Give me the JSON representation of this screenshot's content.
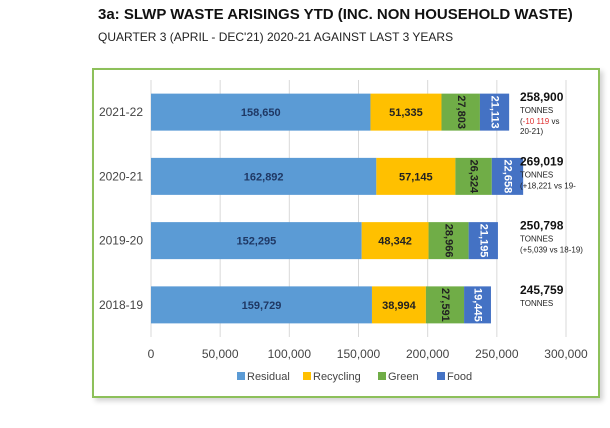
{
  "header": {
    "title": "3a: SLWP WASTE ARISINGS YTD (INC. NON HOUSEHOLD WASTE)",
    "subtitle": "QUARTER 3 (APRIL - DEC'21) 2020-21 AGAINST LAST 3 YEARS"
  },
  "chart_data": {
    "type": "bar",
    "orientation": "horizontal",
    "stacked": true,
    "categories": [
      "2021-22",
      "2020-21",
      "2019-20",
      "2018-19"
    ],
    "series": [
      {
        "name": "Residual",
        "color": "#5b9bd5",
        "label_color": "#1f3864",
        "label_rotated": false,
        "values": [
          158650,
          162892,
          152295,
          159729
        ],
        "labels": [
          "158,650",
          "162,892",
          "152,295",
          "159,729"
        ]
      },
      {
        "name": "Recycling",
        "color": "#ffc000",
        "label_color": "#222222",
        "label_rotated": false,
        "values": [
          51335,
          57145,
          48342,
          38994
        ],
        "labels": [
          "51,335",
          "57,145",
          "48,342",
          "38,994"
        ]
      },
      {
        "name": "Green",
        "color": "#70ad47",
        "label_color": "#222222",
        "label_rotated": true,
        "values": [
          27803,
          26324,
          28966,
          27591
        ],
        "labels": [
          "27,803",
          "26,324",
          "28,966",
          "27,591"
        ]
      },
      {
        "name": "Food",
        "color": "#4472c4",
        "label_color": "#ffffff",
        "label_rotated": true,
        "values": [
          21113,
          22658,
          21195,
          19445
        ],
        "labels": [
          "21,113",
          "22,658",
          "21,195",
          "19,445"
        ]
      }
    ],
    "totals": [
      {
        "value": "258,900",
        "unit": "TONNES",
        "change_open": "(",
        "change_value": "-10 119",
        "change_tail": " vs",
        "change_line2": "20-21)",
        "change_color": "#e03030"
      },
      {
        "value": "269,019",
        "unit": "TONNES",
        "change_open": "",
        "change_value": "(+18,221 vs 19-",
        "change_tail": "",
        "change_line2": "",
        "change_color": "#222222"
      },
      {
        "value": "250,798",
        "unit": "TONNES",
        "change_open": "",
        "change_value": "(+5,039 vs 18-19)",
        "change_tail": "",
        "change_line2": "",
        "change_color": "#222222"
      },
      {
        "value": "245,759",
        "unit": "TONNES",
        "change_open": "",
        "change_value": "",
        "change_tail": "",
        "change_line2": "",
        "change_color": "#222222"
      }
    ],
    "xlim": [
      0,
      300000
    ],
    "xticks": [
      0,
      50000,
      100000,
      150000,
      200000,
      250000,
      300000
    ],
    "xtick_labels": [
      "0",
      "50,000",
      "100,000",
      "150,000",
      "200,000",
      "250,000",
      "300,000"
    ],
    "xlabel": "",
    "ylabel": "",
    "grid": true,
    "legend_position": "bottom"
  }
}
